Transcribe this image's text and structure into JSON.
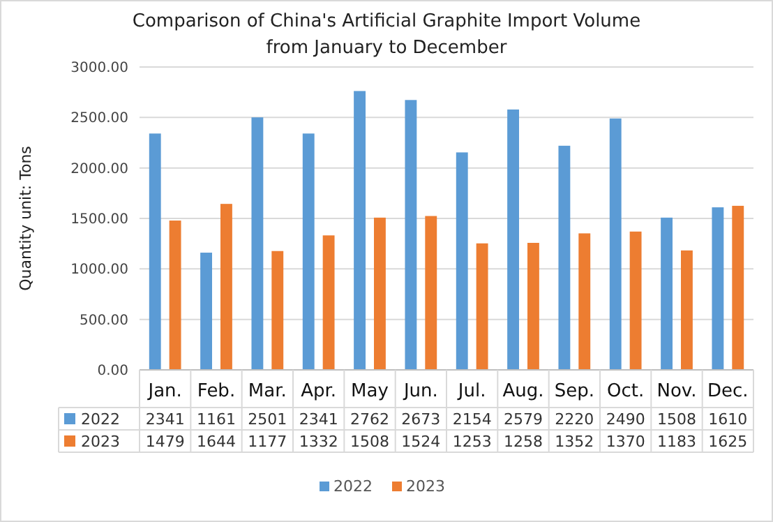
{
  "chart_data": {
    "type": "bar",
    "title": "Comparison of China's Artificial Graphite Import Volume\nfrom January to December",
    "ylabel": "Quantity unit: Tons",
    "categories": [
      "Jan.",
      "Feb.",
      "Mar.",
      "Apr.",
      "May",
      "Jun.",
      "Jul.",
      "Aug.",
      "Sep.",
      "Oct.",
      "Nov.",
      "Dec."
    ],
    "series": [
      {
        "name": "2022",
        "color": "#5b9bd5",
        "values": [
          2341,
          1161,
          2501,
          2341,
          2762,
          2673,
          2154,
          2579,
          2220,
          2490,
          1508,
          1610
        ]
      },
      {
        "name": "2023",
        "color": "#ed7d31",
        "values": [
          1479,
          1644,
          1177,
          1332,
          1508,
          1524,
          1253,
          1258,
          1352,
          1370,
          1183,
          1625
        ]
      }
    ],
    "ylim": [
      0,
      3000
    ],
    "yticks": [
      {
        "value": 0,
        "label": "0.00"
      },
      {
        "value": 500,
        "label": "500.00"
      },
      {
        "value": 1000,
        "label": "1000.00"
      },
      {
        "value": 1500,
        "label": "1500.00"
      },
      {
        "value": 2000,
        "label": "2000.00"
      },
      {
        "value": 2500,
        "label": "2500.00"
      },
      {
        "value": 3000,
        "label": "3000.00"
      }
    ],
    "grid": "y",
    "legend": "bottom",
    "data_labels": true
  }
}
